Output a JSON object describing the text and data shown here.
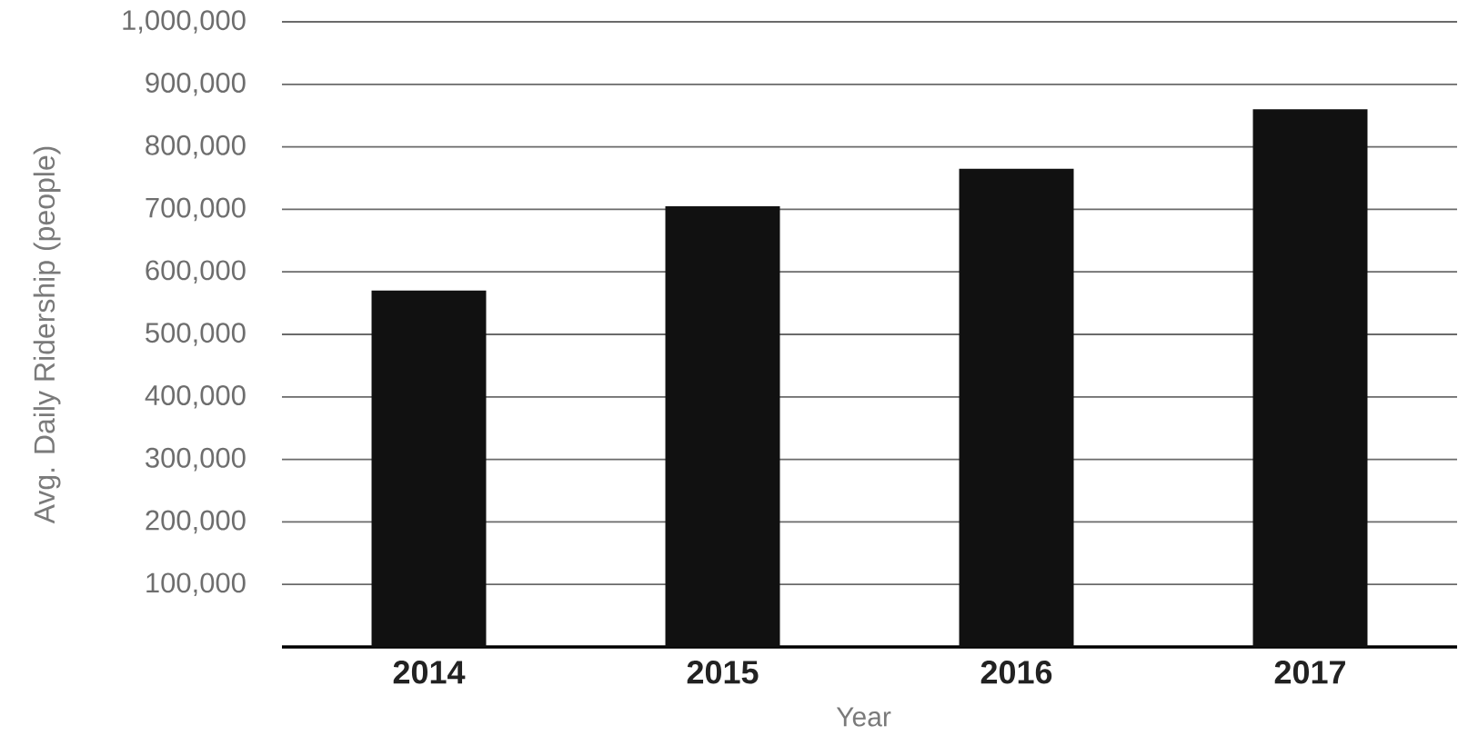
{
  "chart_data": {
    "type": "bar",
    "xlabel": "Year",
    "ylabel": "Avg. Daily Ridership (people)",
    "categories": [
      "2014",
      "2015",
      "2016",
      "2017"
    ],
    "values": [
      570000,
      705000,
      765000,
      860000
    ],
    "color": "#111111",
    "ylim": [
      0,
      1000000
    ],
    "yticks": [
      {
        "value": 100000,
        "label": "100,000"
      },
      {
        "value": 200000,
        "label": "200,000"
      },
      {
        "value": 300000,
        "label": "300,000"
      },
      {
        "value": 400000,
        "label": "400,000"
      },
      {
        "value": 500000,
        "label": "500,000"
      },
      {
        "value": 600000,
        "label": "600,000"
      },
      {
        "value": 700000,
        "label": "700,000"
      },
      {
        "value": 800000,
        "label": "800,000"
      },
      {
        "value": 900000,
        "label": "900,000"
      },
      {
        "value": 1000000,
        "label": "1,000,000"
      }
    ],
    "grid": "y"
  }
}
